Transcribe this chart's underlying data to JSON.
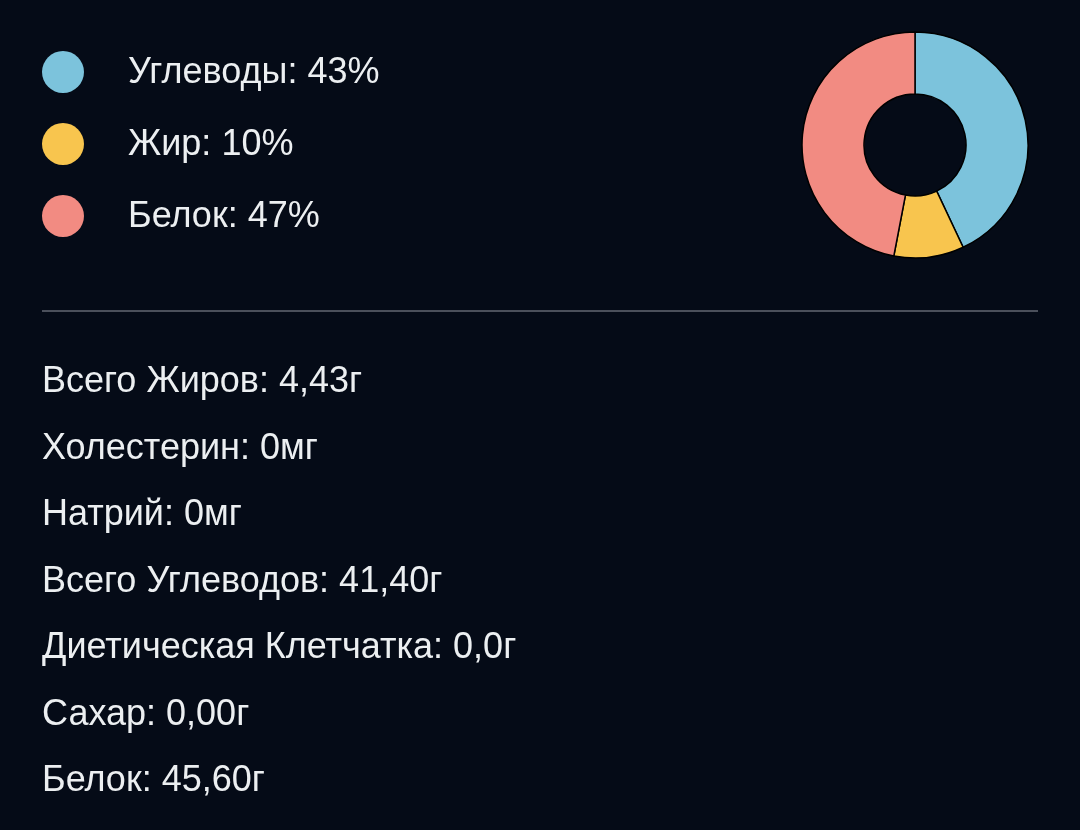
{
  "chart_data": {
    "type": "donut",
    "categories": [
      "Углеводы: 43%",
      "Жир: 10%",
      "Белок: 47%"
    ],
    "values": [
      43,
      10,
      47
    ],
    "colors": [
      "#7cc3dc",
      "#f8c54e",
      "#f28b82"
    ],
    "legend": "left",
    "annotations": [
      "Всего Жиров: 4,43г",
      "Холестерин: 0мг",
      "Натрий: 0мг",
      "Всего Углеводов: 41,40г",
      "Диетическая Клетчатка: 0,0г",
      "Сахар: 0,00г",
      "Белок: 45,60г"
    ]
  }
}
